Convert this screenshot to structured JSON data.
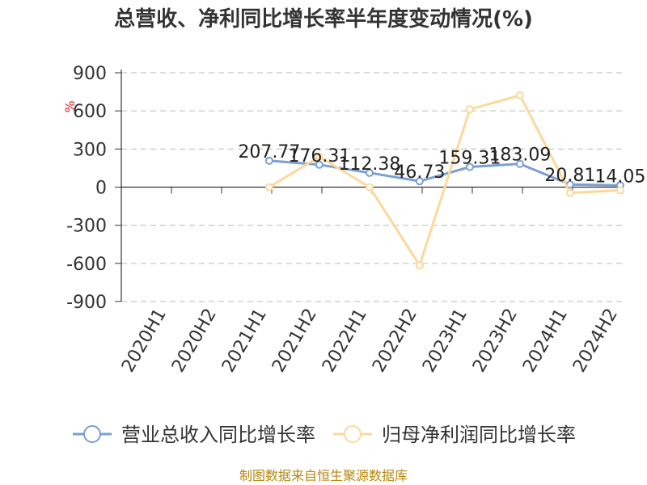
{
  "chart_data": {
    "type": "line",
    "title": "总营收、净利同比增长率半年度变动情况(%)",
    "ylabel": "%",
    "xlabel": "",
    "categories": [
      "2020H1",
      "2020H2",
      "2021H1",
      "2021H2",
      "2022H1",
      "2022H2",
      "2023H1",
      "2023H2",
      "2024H1",
      "2024H2"
    ],
    "ylim": [
      -900,
      900
    ],
    "yticks": [
      900,
      600,
      300,
      0,
      -300,
      -600,
      -900
    ],
    "grid": true,
    "legend_position": "bottom",
    "series": [
      {
        "name": "营业总收入同比增长率",
        "color": "#7b9fd1",
        "values": [
          null,
          null,
          207.77,
          176.31,
          112.38,
          46.73,
          159.31,
          183.09,
          20.81,
          14.05
        ],
        "data_labels": [
          "",
          "",
          "207.77",
          "176.31",
          "112.38",
          "46.73",
          "159.31",
          "183.09",
          "20.81",
          "14.05"
        ]
      },
      {
        "name": "归母净利润同比增长率",
        "color": "#fcd99a",
        "values": [
          null,
          null,
          0,
          240,
          0,
          -615,
          612,
          722,
          -45,
          -25
        ],
        "data_labels": []
      }
    ]
  },
  "source": "制图数据来自恒生聚源数据库"
}
